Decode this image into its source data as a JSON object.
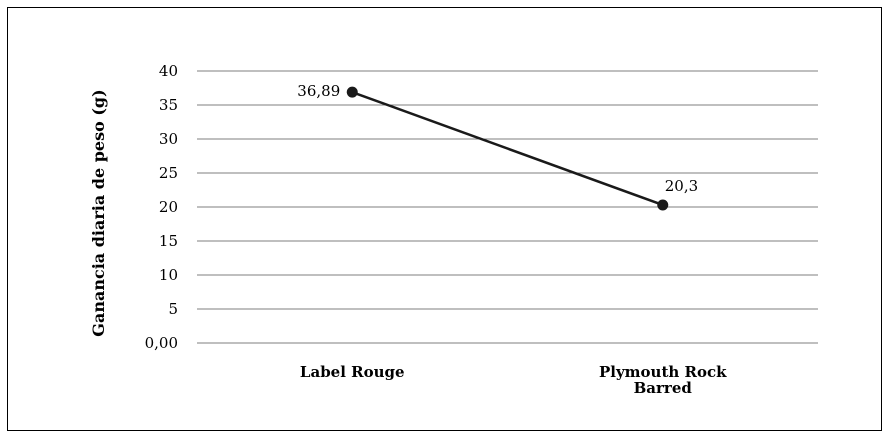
{
  "chart_data": {
    "type": "line",
    "title": "",
    "xlabel": "",
    "ylabel": "Ganancia diaria de peso (g)",
    "categories": [
      "Label Rouge",
      "Plymouth Rock Barred"
    ],
    "category_lines": [
      [
        "Label Rouge"
      ],
      [
        "Plymouth Rock",
        "Barred"
      ]
    ],
    "series": [
      {
        "values": [
          36.89,
          20.3
        ],
        "data_labels": [
          "36,89",
          "20,3"
        ]
      }
    ],
    "ylim": [
      0,
      40
    ],
    "yticks": [
      0,
      5,
      10,
      15,
      20,
      25,
      30,
      35,
      40
    ],
    "ytick_labels": [
      "0,00",
      "5",
      "10",
      "15",
      "20",
      "25",
      "30",
      "35",
      "40"
    ],
    "grid": true,
    "legend": "none",
    "colors": {
      "line": "#1a1a1a",
      "marker": "#1a1a1a",
      "grid": "#7f7f7f",
      "frame": "#000000"
    }
  }
}
